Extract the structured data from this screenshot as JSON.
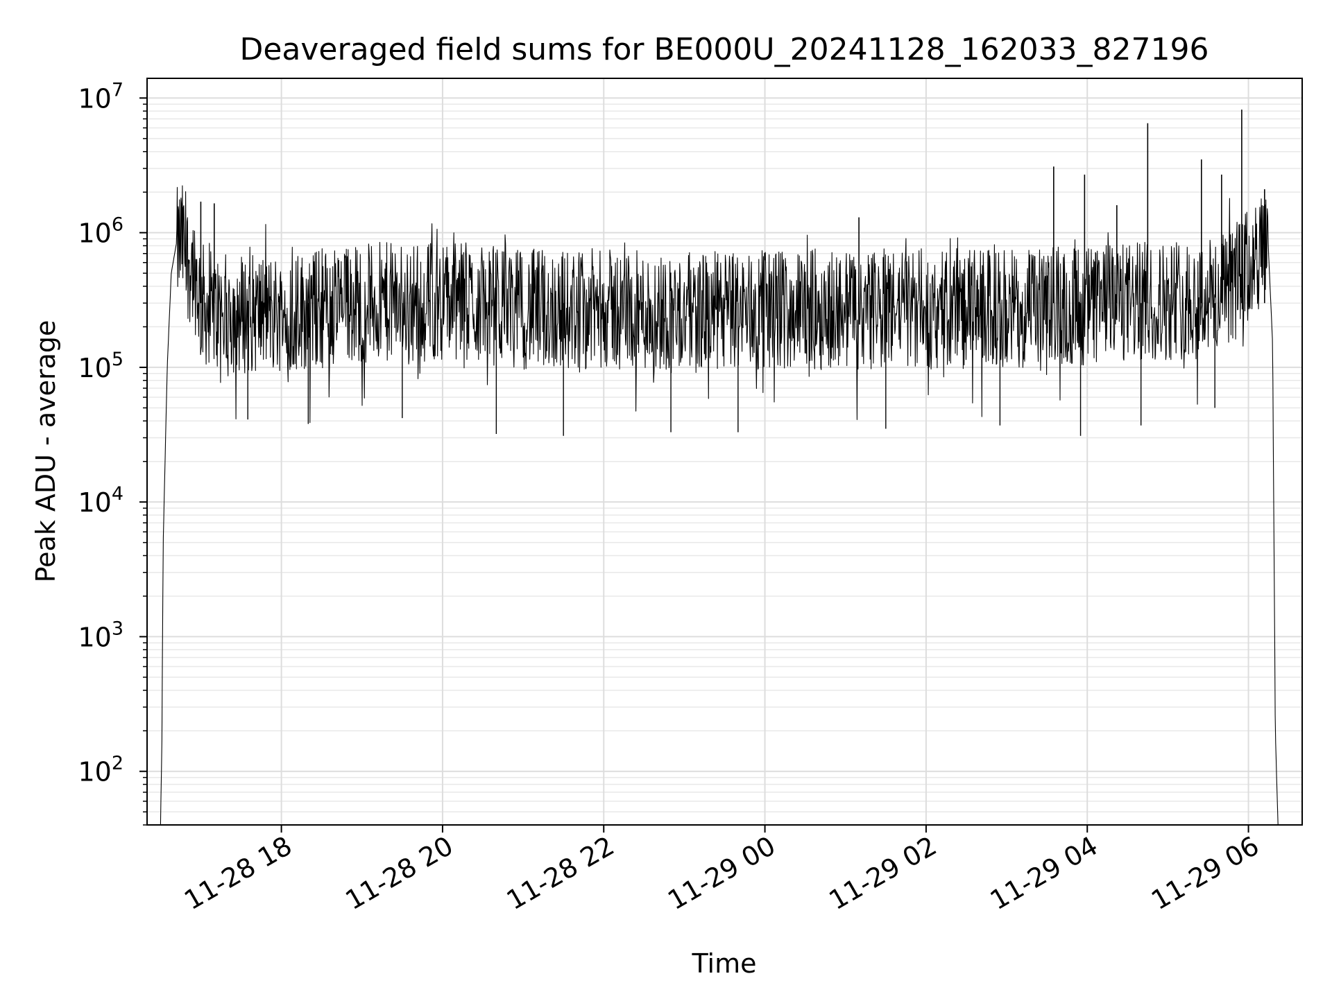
{
  "chart_data": {
    "type": "line",
    "title": "Deaveraged field sums for BE000U_20241128_162033_827196",
    "xlabel": "Time",
    "ylabel": "Peak ADU - average",
    "x_ticks": [
      "11-28 18",
      "11-28 20",
      "11-28 22",
      "11-29 00",
      "11-29 02",
      "11-29 04",
      "11-29 06"
    ],
    "x_tick_times": [
      "2024-11-28T18:00",
      "2024-11-28T20:00",
      "2024-11-28T22:00",
      "2024-11-29T00:00",
      "2024-11-29T02:00",
      "2024-11-29T04:00",
      "2024-11-29T06:00"
    ],
    "y_scale": "log",
    "y_ticks": [
      {
        "base": "10",
        "exp": "2",
        "value": 100
      },
      {
        "base": "10",
        "exp": "3",
        "value": 1000
      },
      {
        "base": "10",
        "exp": "4",
        "value": 10000
      },
      {
        "base": "10",
        "exp": "5",
        "value": 100000
      },
      {
        "base": "10",
        "exp": "6",
        "value": 1000000
      },
      {
        "base": "10",
        "exp": "7",
        "value": 10000000
      }
    ],
    "xlim": [
      "2024-11-28T16:20",
      "2024-11-29T06:40"
    ],
    "ylim": [
      40,
      14000000
    ],
    "grid": true,
    "legend": "none",
    "line_color": "#000000",
    "series": [
      {
        "x": [
          "2024-11-28T16:30",
          "2024-11-28T16:31",
          "2024-11-28T16:32",
          "2024-11-28T16:35",
          "2024-11-28T16:38",
          "2024-11-28T16:42",
          "2024-11-28T16:46",
          "2024-11-28T16:50",
          "2024-11-28T16:55",
          "2024-11-28T17:00",
          "2024-11-28T17:05",
          "2024-11-28T17:10",
          "2024-11-28T17:30",
          "2024-11-28T18:00",
          "2024-11-28T19:00",
          "2024-11-28T20:00",
          "2024-11-28T20:30",
          "2024-11-28T21:00",
          "2024-11-28T22:00",
          "2024-11-28T23:00",
          "2024-11-29T00:00",
          "2024-11-29T01:00",
          "2024-11-29T02:00",
          "2024-11-29T03:00",
          "2024-11-29T04:00",
          "2024-11-29T05:00",
          "2024-11-29T05:40",
          "2024-11-29T06:00",
          "2024-11-29T06:10",
          "2024-11-29T06:15",
          "2024-11-29T06:18",
          "2024-11-29T06:20",
          "2024-11-29T06:22"
        ],
        "y": [
          40,
          150,
          5000,
          100000,
          500000,
          850000,
          950000,
          700000,
          600000,
          350000,
          300000,
          280000,
          280000,
          280000,
          330000,
          350000,
          330000,
          300000,
          300000,
          280000,
          300000,
          300000,
          300000,
          300000,
          320000,
          350000,
          380000,
          600000,
          800000,
          700000,
          150000,
          200,
          40
        ]
      }
    ],
    "spikes": [
      {
        "x": "2024-11-28T17:00",
        "y": 1700000
      },
      {
        "x": "2024-11-28T17:10",
        "y": 1650000
      },
      {
        "x": "2024-11-29T01:10",
        "y": 1300000
      },
      {
        "x": "2024-11-29T03:35",
        "y": 3100000
      },
      {
        "x": "2024-11-29T03:58",
        "y": 2700000
      },
      {
        "x": "2024-11-29T04:22",
        "y": 1600000
      },
      {
        "x": "2024-11-29T04:45",
        "y": 6500000
      },
      {
        "x": "2024-11-29T05:25",
        "y": 3500000
      },
      {
        "x": "2024-11-29T05:40",
        "y": 2700000
      },
      {
        "x": "2024-11-29T05:55",
        "y": 8200000
      },
      {
        "x": "2024-11-29T06:12",
        "y": 2100000
      }
    ],
    "dips": [
      {
        "x": "2024-11-28T17:35",
        "y": 41000
      },
      {
        "x": "2024-11-28T18:20",
        "y": 38000
      },
      {
        "x": "2024-11-28T19:30",
        "y": 42000
      },
      {
        "x": "2024-11-28T20:40",
        "y": 32000
      },
      {
        "x": "2024-11-28T21:30",
        "y": 31000
      },
      {
        "x": "2024-11-28T22:50",
        "y": 33000
      },
      {
        "x": "2024-11-28T23:40",
        "y": 33000
      },
      {
        "x": "2024-11-29T01:30",
        "y": 35000
      },
      {
        "x": "2024-11-29T02:55",
        "y": 37000
      },
      {
        "x": "2024-11-29T03:55",
        "y": 31000
      },
      {
        "x": "2024-11-29T04:40",
        "y": 37000
      },
      {
        "x": "2024-11-29T05:35",
        "y": 50000
      }
    ]
  }
}
